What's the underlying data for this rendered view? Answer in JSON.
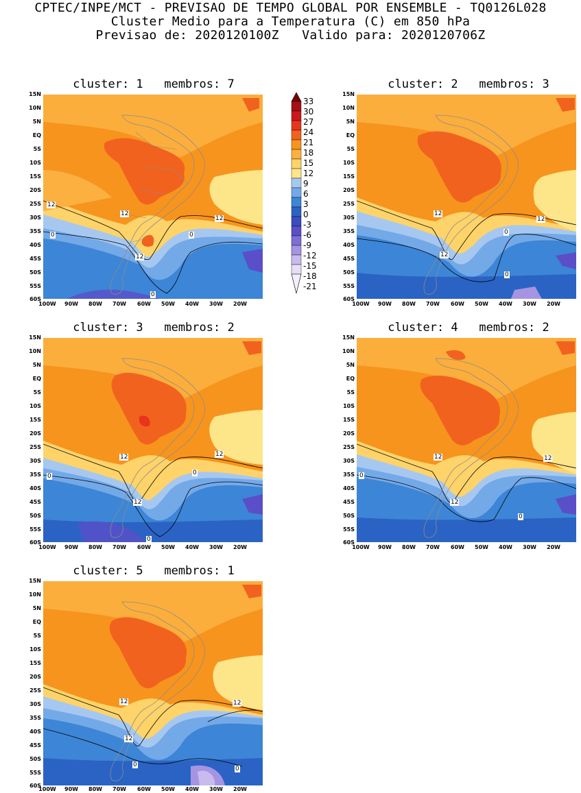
{
  "header": {
    "line1": "CPTEC/INPE/MCT - PREVISAO DE TEMPO GLOBAL POR ENSEMBLE - TQ0126L028",
    "line2": "Cluster Medio para a Temperatura (C) em 850 hPa",
    "line3": "Previsao de: 2020120100Z   Valido para: 2020120706Z"
  },
  "lat_labels": [
    "15N",
    "10N",
    "5N",
    "EQ",
    "5S",
    "10S",
    "15S",
    "20S",
    "25S",
    "30S",
    "35S",
    "40S",
    "45S",
    "50S",
    "55S",
    "60S"
  ],
  "lon_labels": [
    "100W",
    "90W",
    "80W",
    "70W",
    "60W",
    "50W",
    "40W",
    "30W",
    "20W"
  ],
  "colorbar": {
    "levels": [
      "33",
      "30",
      "27",
      "24",
      "21",
      "18",
      "15",
      "12",
      "9",
      "6",
      "3",
      "0",
      "-3",
      "-6",
      "-9",
      "-12",
      "-15",
      "-18",
      "-21"
    ],
    "colors": [
      "#7a0000",
      "#a50f15",
      "#cb181d",
      "#e8341c",
      "#f2621f",
      "#f7941d",
      "#fbb040",
      "#fdd36a",
      "#fde58a",
      "#a6c8f0",
      "#74a9e8",
      "#3d85d6",
      "#2a63c4",
      "#3a4cc0",
      "#5a4fc8",
      "#7e6fd6",
      "#a594e2",
      "#c9bbee",
      "#e6ddf7"
    ]
  },
  "panels": [
    {
      "title": "cluster: 1   membros: 7",
      "contour_labels": [
        "12",
        "12",
        "12",
        "12",
        "0",
        "0",
        "0"
      ]
    },
    {
      "title": "cluster: 2   membros: 3",
      "contour_labels": [
        "12",
        "12",
        "12",
        "0",
        "0"
      ]
    },
    {
      "title": "cluster: 3   membros: 2",
      "contour_labels": [
        "12",
        "12",
        "12",
        "0",
        "0",
        "0"
      ]
    },
    {
      "title": "cluster: 4   membros: 2",
      "contour_labels": [
        "12",
        "12",
        "12",
        "0",
        "0"
      ]
    },
    {
      "title": "cluster: 5   membros: 1",
      "contour_labels": [
        "12",
        "12",
        "12",
        "0",
        "0"
      ]
    }
  ]
}
